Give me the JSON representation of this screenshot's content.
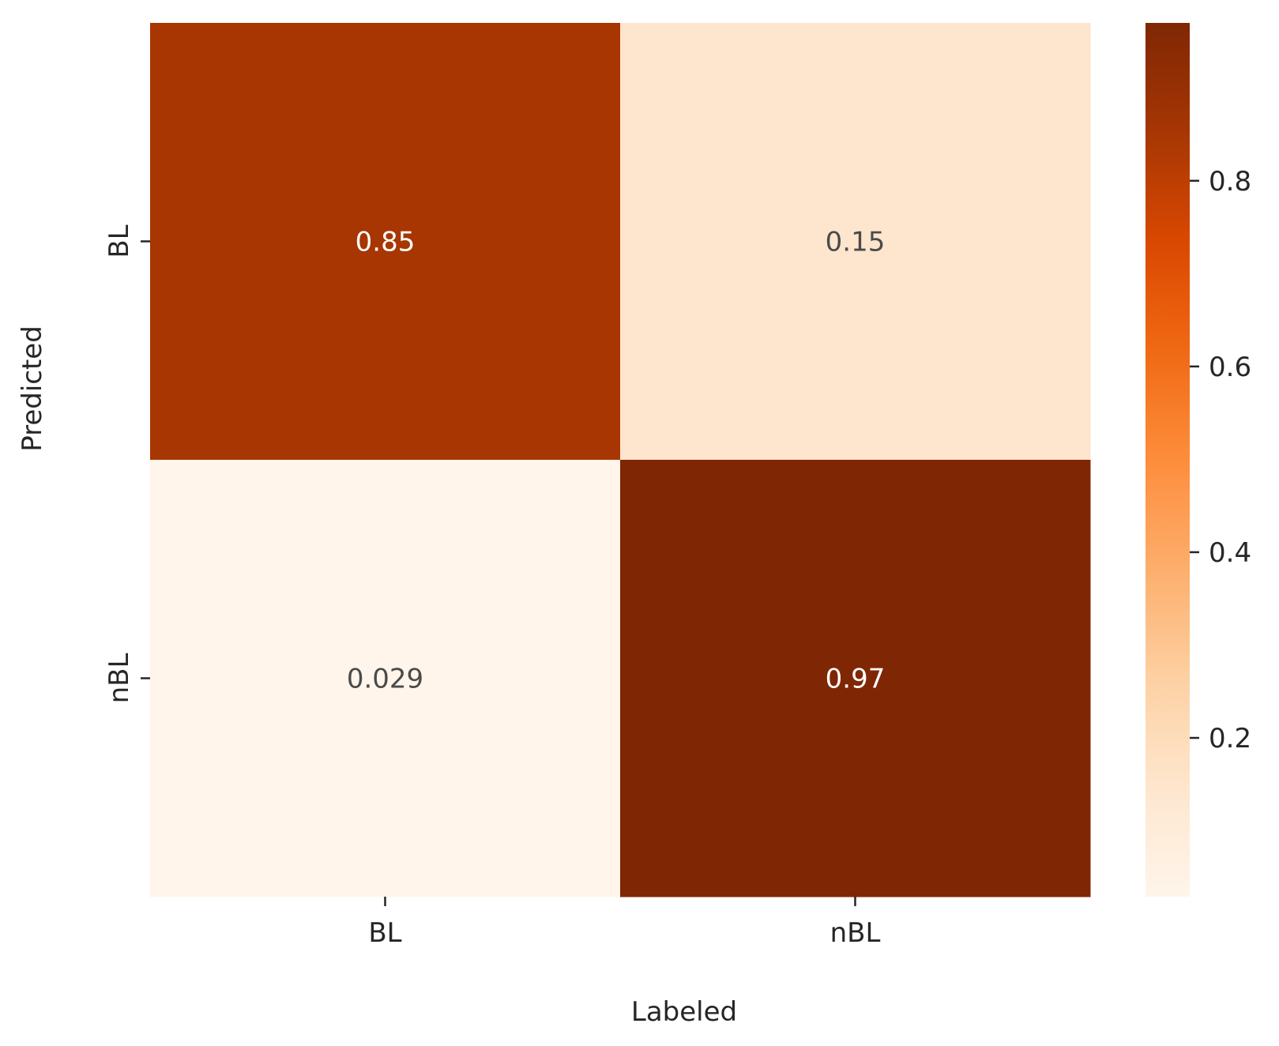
{
  "chart_data": {
    "type": "heatmap",
    "title": "",
    "xlabel": "Labeled",
    "ylabel": "Predicted",
    "x_categories": [
      "BL",
      "nBL"
    ],
    "y_categories": [
      "BL",
      "nBL"
    ],
    "values": [
      [
        0.85,
        0.15
      ],
      [
        0.029,
        0.97
      ]
    ],
    "value_labels": [
      [
        "0.85",
        "0.15"
      ],
      [
        "0.029",
        "0.97"
      ]
    ],
    "colormap": "Oranges",
    "colorbar": {
      "range": [
        0.029,
        0.97
      ],
      "ticks": [
        0.2,
        0.4,
        0.6,
        0.8
      ],
      "tick_labels": [
        "0.2",
        "0.4",
        "0.6",
        "0.8"
      ]
    },
    "grid": false,
    "legend": "colorbar-right"
  }
}
